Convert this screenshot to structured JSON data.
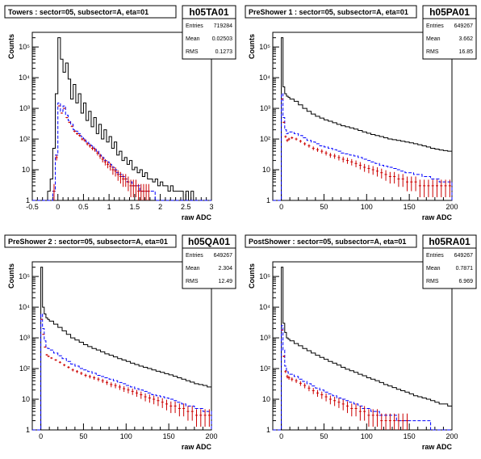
{
  "chart_data": [
    {
      "type": "histogram",
      "title": "Towers : sector=05, subsector=A, eta=01",
      "hist_name": "h05TA01",
      "stats": [
        {
          "label": "Entries",
          "value": "719284"
        },
        {
          "label": "Mean",
          "value": "0.02503"
        },
        {
          "label": "RMS",
          "value": "0.1273"
        }
      ],
      "xlabel": "raw ADC",
      "ylabel": "Counts",
      "xlim": [
        -0.5,
        3.0
      ],
      "ylim": [
        1,
        300000
      ],
      "log_y": true,
      "xticks": [
        -0.5,
        0,
        0.5,
        1,
        1.5,
        2,
        2.5,
        3
      ],
      "xtick_labels": [
        "-0.5",
        "0",
        "0.5",
        "1",
        "1.5",
        "2",
        "2.5",
        "3"
      ],
      "ytick_labels": [
        {
          "v": 1,
          "t": "1"
        },
        {
          "v": 10,
          "t": "10"
        },
        {
          "v": 100,
          "t": "10²"
        },
        {
          "v": 1000,
          "t": "10³"
        },
        {
          "v": 10000,
          "t": "10⁴"
        },
        {
          "v": 100000,
          "t": "10⁵"
        }
      ],
      "bin_edges": [
        -0.5,
        -0.45,
        -0.4,
        -0.35,
        -0.3,
        -0.25,
        -0.2,
        -0.15,
        -0.1,
        -0.05,
        0,
        0.05,
        0.1,
        0.15,
        0.2,
        0.25,
        0.3,
        0.35,
        0.4,
        0.45,
        0.5,
        0.55,
        0.6,
        0.65,
        0.7,
        0.75,
        0.8,
        0.85,
        0.9,
        0.95,
        1,
        1.05,
        1.1,
        1.15,
        1.2,
        1.25,
        1.3,
        1.35,
        1.4,
        1.45,
        1.5,
        1.55,
        1.6,
        1.65,
        1.7,
        1.75,
        1.8,
        1.85,
        1.9,
        1.95,
        2,
        2.05,
        2.1,
        2.15,
        2.2,
        2.25,
        2.3,
        2.35,
        2.4,
        2.45,
        2.5,
        2.55,
        2.6,
        2.65,
        2.7,
        2.75,
        2.8,
        2.85,
        2.9,
        2.95,
        3.0
      ],
      "series": [
        {
          "color": "#000000",
          "style": "hist",
          "values": [
            1,
            1,
            1,
            1,
            1,
            1,
            2,
            5,
            50,
            3000,
            200000,
            40000,
            15000,
            30000,
            9000,
            2000,
            6000,
            1500,
            3000,
            700,
            1500,
            400,
            800,
            250,
            500,
            150,
            300,
            100,
            200,
            80,
            120,
            50,
            80,
            30,
            40,
            20,
            25,
            15,
            20,
            10,
            12,
            8,
            10,
            6,
            8,
            5,
            5,
            4,
            5,
            3,
            4,
            3,
            3,
            2,
            3,
            2,
            2,
            2,
            2,
            1,
            2,
            1,
            2,
            1,
            1,
            1,
            1,
            1,
            1,
            1
          ]
        },
        {
          "color": "#0000ff",
          "style": "dashed",
          "values": [
            1,
            1,
            1,
            1,
            1,
            1,
            1,
            1,
            2,
            30,
            1500,
            800,
            1200,
            600,
            400,
            300,
            200,
            180,
            150,
            120,
            100,
            80,
            70,
            60,
            50,
            40,
            30,
            25,
            20,
            18,
            15,
            12,
            10,
            8,
            7,
            6,
            5,
            4,
            4,
            3,
            3,
            3,
            2,
            2,
            2,
            2,
            2,
            2,
            1,
            1,
            1,
            1,
            1,
            1,
            1,
            1,
            1,
            1,
            1,
            1,
            1,
            1,
            1,
            1,
            1,
            1,
            1,
            1,
            1,
            1
          ]
        },
        {
          "color": "#cc0000",
          "style": "points",
          "values": [
            1,
            1,
            1,
            1,
            1,
            1,
            1,
            1,
            2,
            25,
            1200,
            700,
            1000,
            500,
            350,
            260,
            180,
            150,
            130,
            100,
            90,
            70,
            60,
            50,
            45,
            35,
            28,
            22,
            18,
            15,
            13,
            10,
            9,
            7,
            6,
            5,
            5,
            4,
            3,
            3,
            3,
            2,
            2,
            2,
            2,
            2,
            1,
            1,
            1,
            1,
            1,
            1,
            1,
            1,
            1,
            1,
            1,
            1,
            1,
            1,
            1,
            1,
            1,
            1,
            1,
            1,
            1,
            1,
            1,
            1
          ]
        }
      ]
    },
    {
      "type": "histogram",
      "title": "PreShower 1 : sector=05, subsector=A, eta=01",
      "hist_name": "h05PA01",
      "stats": [
        {
          "label": "Entries",
          "value": "649267"
        },
        {
          "label": "Mean",
          "value": "3.662"
        },
        {
          "label": "RMS",
          "value": "16.85"
        }
      ],
      "xlabel": "raw ADC",
      "ylabel": "Counts",
      "xlim": [
        -10,
        200
      ],
      "ylim": [
        1,
        300000
      ],
      "log_y": true,
      "xticks": [
        0,
        50,
        100,
        150,
        200
      ],
      "xtick_labels": [
        "0",
        "50",
        "100",
        "150",
        "200"
      ],
      "ytick_labels": [
        {
          "v": 1,
          "t": "1"
        },
        {
          "v": 10,
          "t": "10"
        },
        {
          "v": 100,
          "t": "10²"
        },
        {
          "v": 1000,
          "t": "10³"
        },
        {
          "v": 10000,
          "t": "10⁴"
        },
        {
          "v": 100000,
          "t": "10⁵"
        }
      ],
      "bin_edges": [
        -10,
        -5,
        0,
        2,
        4,
        6,
        8,
        10,
        15,
        20,
        25,
        30,
        35,
        40,
        45,
        50,
        55,
        60,
        65,
        70,
        75,
        80,
        85,
        90,
        95,
        100,
        105,
        110,
        115,
        120,
        125,
        130,
        135,
        140,
        145,
        150,
        155,
        160,
        165,
        170,
        175,
        180,
        185,
        190,
        195,
        200
      ],
      "series": [
        {
          "color": "#000000",
          "style": "hist",
          "values": [
            1,
            1,
            200000,
            5000,
            3000,
            2500,
            2300,
            2000,
            1700,
            1300,
            1000,
            800,
            650,
            550,
            480,
            420,
            380,
            340,
            300,
            270,
            250,
            230,
            210,
            190,
            170,
            155,
            140,
            130,
            120,
            110,
            100,
            95,
            90,
            85,
            80,
            75,
            70,
            65,
            60,
            55,
            50,
            47,
            44,
            42,
            40
          ]
        },
        {
          "color": "#0000ff",
          "style": "dashed",
          "values": [
            1,
            1,
            3000,
            500,
            200,
            150,
            160,
            170,
            150,
            130,
            110,
            90,
            80,
            70,
            60,
            55,
            50,
            45,
            40,
            35,
            33,
            30,
            28,
            25,
            22,
            20,
            18,
            16,
            14,
            13,
            12,
            11,
            10,
            9,
            8,
            8,
            7,
            7,
            6,
            6,
            5,
            5,
            4,
            4,
            4
          ]
        },
        {
          "color": "#cc0000",
          "style": "points",
          "values": [
            1,
            1,
            2000,
            350,
            120,
            90,
            100,
            110,
            100,
            85,
            70,
            60,
            50,
            45,
            40,
            35,
            30,
            28,
            25,
            22,
            20,
            18,
            16,
            14,
            12,
            11,
            10,
            9,
            8,
            7,
            6,
            6,
            5,
            5,
            4,
            4,
            4,
            3,
            3,
            3,
            3,
            3,
            3,
            3,
            3
          ]
        }
      ]
    },
    {
      "type": "histogram",
      "title": "PreShower 2 : sector=05, subsector=A, eta=01",
      "hist_name": "h05QA01",
      "stats": [
        {
          "label": "Entries",
          "value": "649267"
        },
        {
          "label": "Mean",
          "value": "2.304"
        },
        {
          "label": "RMS",
          "value": "12.49"
        }
      ],
      "xlabel": "raw ADC",
      "ylabel": "Counts",
      "xlim": [
        -10,
        200
      ],
      "ylim": [
        1,
        300000
      ],
      "log_y": true,
      "xticks": [
        0,
        50,
        100,
        150,
        200
      ],
      "xtick_labels": [
        "0",
        "50",
        "100",
        "150",
        "200"
      ],
      "ytick_labels": [
        {
          "v": 1,
          "t": "1"
        },
        {
          "v": 10,
          "t": "10"
        },
        {
          "v": 100,
          "t": "10²"
        },
        {
          "v": 1000,
          "t": "10³"
        },
        {
          "v": 10000,
          "t": "10⁴"
        },
        {
          "v": 100000,
          "t": "10⁵"
        }
      ],
      "bin_edges": [
        -10,
        -5,
        0,
        2,
        4,
        6,
        8,
        10,
        15,
        20,
        25,
        30,
        35,
        40,
        45,
        50,
        55,
        60,
        65,
        70,
        75,
        80,
        85,
        90,
        95,
        100,
        105,
        110,
        115,
        120,
        125,
        130,
        135,
        140,
        145,
        150,
        155,
        160,
        165,
        170,
        175,
        180,
        185,
        190,
        195,
        200
      ],
      "series": [
        {
          "color": "#000000",
          "style": "hist",
          "values": [
            1,
            1,
            200000,
            10000,
            6000,
            4500,
            4000,
            3500,
            2800,
            2200,
            1700,
            1300,
            1000,
            850,
            720,
            600,
            520,
            450,
            400,
            350,
            300,
            270,
            240,
            210,
            190,
            170,
            150,
            135,
            120,
            110,
            100,
            90,
            82,
            75,
            68,
            62,
            56,
            50,
            45,
            40,
            36,
            32,
            30,
            28,
            25
          ]
        },
        {
          "color": "#0000ff",
          "style": "dashed",
          "values": [
            1,
            1,
            6000,
            2000,
            800,
            500,
            450,
            400,
            320,
            260,
            210,
            170,
            140,
            120,
            100,
            90,
            80,
            70,
            60,
            55,
            50,
            45,
            40,
            35,
            32,
            28,
            25,
            22,
            20,
            18,
            16,
            14,
            13,
            12,
            11,
            10,
            9,
            8,
            7,
            6,
            6,
            5,
            5,
            4,
            4
          ]
        },
        {
          "color": "#cc0000",
          "style": "points",
          "values": [
            1,
            1,
            4000,
            1300,
            500,
            280,
            250,
            220,
            190,
            160,
            130,
            110,
            90,
            80,
            70,
            60,
            55,
            50,
            45,
            40,
            35,
            30,
            28,
            25,
            22,
            20,
            18,
            16,
            14,
            12,
            11,
            10,
            9,
            8,
            7,
            6,
            6,
            5,
            5,
            4,
            4,
            3,
            3,
            3,
            3
          ]
        }
      ]
    },
    {
      "type": "histogram",
      "title": "PostShower : sector=05, subsector=A, eta=01",
      "hist_name": "h05RA01",
      "stats": [
        {
          "label": "Entries",
          "value": "649267"
        },
        {
          "label": "Mean",
          "value": "0.7871"
        },
        {
          "label": "RMS",
          "value": "6.969"
        }
      ],
      "xlabel": "raw ADC",
      "ylabel": "Counts",
      "xlim": [
        -10,
        200
      ],
      "ylim": [
        1,
        300000
      ],
      "log_y": true,
      "xticks": [
        0,
        50,
        100,
        150,
        200
      ],
      "xtick_labels": [
        "0",
        "50",
        "100",
        "150",
        "200"
      ],
      "ytick_labels": [
        {
          "v": 1,
          "t": "1"
        },
        {
          "v": 10,
          "t": "10"
        },
        {
          "v": 100,
          "t": "10²"
        },
        {
          "v": 1000,
          "t": "10³"
        },
        {
          "v": 10000,
          "t": "10⁴"
        },
        {
          "v": 100000,
          "t": "10⁵"
        }
      ],
      "bin_edges": [
        -10,
        -5,
        0,
        2,
        4,
        6,
        8,
        10,
        15,
        20,
        25,
        30,
        35,
        40,
        45,
        50,
        55,
        60,
        65,
        70,
        75,
        80,
        85,
        90,
        95,
        100,
        105,
        110,
        115,
        120,
        125,
        130,
        135,
        140,
        145,
        150,
        155,
        160,
        165,
        170,
        175,
        180,
        185,
        190,
        195,
        200
      ],
      "series": [
        {
          "color": "#000000",
          "style": "hist",
          "values": [
            1,
            1,
            200000,
            3000,
            1500,
            1000,
            900,
            800,
            650,
            550,
            450,
            380,
            320,
            270,
            230,
            200,
            170,
            150,
            130,
            110,
            95,
            85,
            75,
            65,
            58,
            50,
            45,
            40,
            35,
            30,
            27,
            24,
            21,
            19,
            17,
            15,
            13,
            12,
            11,
            10,
            9,
            8,
            7,
            7,
            6
          ]
        },
        {
          "color": "#0000ff",
          "style": "dashed",
          "values": [
            1,
            1,
            2500,
            400,
            120,
            80,
            70,
            65,
            55,
            45,
            38,
            32,
            27,
            23,
            20,
            17,
            15,
            13,
            11,
            10,
            9,
            8,
            7,
            6,
            5,
            5,
            4,
            4,
            3,
            3,
            3,
            3,
            2,
            2,
            2,
            2,
            2,
            2,
            2,
            2,
            1,
            1,
            1,
            1,
            1
          ]
        },
        {
          "color": "#cc0000",
          "style": "points",
          "values": [
            1,
            1,
            1800,
            250,
            80,
            55,
            50,
            45,
            40,
            33,
            28,
            23,
            19,
            16,
            14,
            12,
            10,
            9,
            8,
            7,
            6,
            5,
            5,
            4,
            4,
            3,
            3,
            3,
            2,
            2,
            2,
            2,
            2,
            2,
            2,
            1,
            1,
            1,
            1,
            1,
            1,
            1,
            1,
            1,
            1
          ]
        }
      ]
    }
  ]
}
